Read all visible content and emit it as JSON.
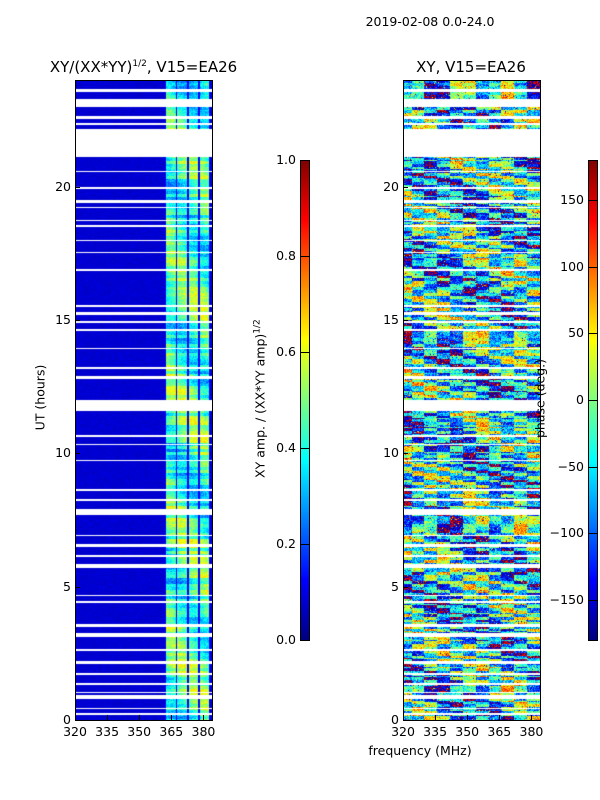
{
  "chart_data": {
    "type": "heatmap",
    "suptitle": "2019-02-08 0.0-24.0",
    "xlabel": "frequency (MHz)",
    "panels": [
      {
        "title": "XY/(XX*YY)",
        "title_sup": "1/2",
        "title_suffix": ", V15=EA26",
        "ylabel": "UT (hours)",
        "xlim": [
          320,
          384
        ],
        "ylim": [
          0,
          24
        ],
        "xticks": [
          "320",
          "335",
          "350",
          "365",
          "380"
        ],
        "xtick_values": [
          320,
          335,
          350,
          365,
          380
        ],
        "yticks": [
          "0",
          "5",
          "10",
          "15",
          "20"
        ],
        "ytick_values": [
          0,
          5,
          10,
          15,
          20
        ],
        "colormap": "jet",
        "colorbar": {
          "label": "XY amp. / (XX*YY amp)",
          "label_sup": "1/2",
          "range": [
            0.0,
            1.0
          ],
          "ticks": [
            "0.0",
            "0.2",
            "0.4",
            "0.6",
            "0.8",
            "1.0"
          ],
          "tick_values": [
            0,
            0.2,
            0.4,
            0.6,
            0.8,
            1.0
          ]
        },
        "typical_values": {
          "below_362MHz": 0.08,
          "362_384MHz": 0.4
        }
      },
      {
        "title": "XY, V15=EA26",
        "xlim": [
          320,
          384
        ],
        "ylim": [
          0,
          24
        ],
        "xticks": [
          "320",
          "335",
          "350",
          "365",
          "380"
        ],
        "xtick_values": [
          320,
          335,
          350,
          365,
          380
        ],
        "yticks": [
          "0",
          "5",
          "10",
          "15",
          "20"
        ],
        "ytick_values": [
          0,
          5,
          10,
          15,
          20
        ],
        "colormap": "jet",
        "colorbar": {
          "label": "phase (deg.)",
          "range": [
            -180,
            180
          ],
          "ticks": [
            "−150",
            "−100",
            "−50",
            "0",
            "50",
            "100",
            "150"
          ],
          "tick_values": [
            -150,
            -100,
            -50,
            0,
            50,
            100,
            150
          ]
        }
      }
    ],
    "flagged_ut_intervals": [
      [
        23.55,
        23.65
      ],
      [
        23.0,
        23.3
      ],
      [
        22.55,
        22.65
      ],
      [
        22.3,
        22.4
      ],
      [
        21.1,
        22.15
      ],
      [
        20.55,
        20.6
      ],
      [
        19.9,
        20.0
      ],
      [
        19.4,
        19.5
      ],
      [
        19.2,
        19.25
      ],
      [
        18.7,
        18.75
      ],
      [
        18.5,
        18.55
      ],
      [
        17.95,
        18.0
      ],
      [
        17.5,
        17.55
      ],
      [
        16.85,
        16.9
      ],
      [
        15.5,
        15.55
      ],
      [
        15.2,
        15.3
      ],
      [
        14.9,
        14.95
      ],
      [
        14.6,
        14.65
      ],
      [
        13.9,
        13.95
      ],
      [
        13.15,
        13.25
      ],
      [
        12.8,
        12.9
      ],
      [
        11.6,
        12.0
      ],
      [
        10.6,
        10.7
      ],
      [
        10.3,
        10.35
      ],
      [
        9.7,
        9.75
      ],
      [
        8.6,
        8.65
      ],
      [
        8.2,
        8.3
      ],
      [
        7.7,
        7.9
      ],
      [
        6.9,
        6.95
      ],
      [
        6.5,
        6.6
      ],
      [
        6.1,
        6.2
      ],
      [
        5.7,
        5.85
      ],
      [
        4.65,
        4.7
      ],
      [
        4.4,
        4.45
      ],
      [
        3.5,
        3.6
      ],
      [
        3.1,
        3.25
      ],
      [
        2.6,
        2.65
      ],
      [
        2.1,
        2.2
      ],
      [
        1.7,
        1.75
      ],
      [
        1.3,
        1.4
      ],
      [
        1.0,
        1.05
      ],
      [
        0.8,
        0.95
      ],
      [
        0.4,
        0.45
      ],
      [
        0.2,
        0.25
      ]
    ]
  }
}
